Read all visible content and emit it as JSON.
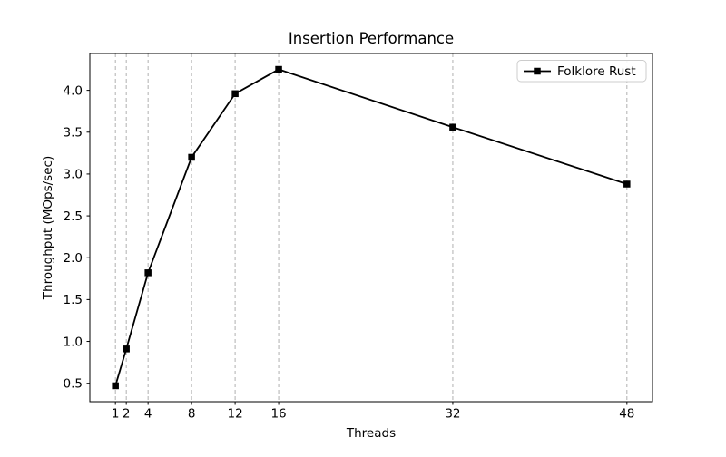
{
  "chart_data": {
    "type": "line",
    "title": "Insertion Performance",
    "xlabel": "Threads",
    "ylabel": "Throughput (MOps/sec)",
    "legend_position": "upper right",
    "grid": "vertical dashed gridlines at x ticks only",
    "xlim": [
      -1.35,
      50.35
    ],
    "ylim": [
      0.28,
      4.44
    ],
    "x_ticks": [
      1,
      2,
      4,
      8,
      12,
      16,
      32,
      48
    ],
    "y_ticks": [
      0.5,
      1.0,
      1.5,
      2.0,
      2.5,
      3.0,
      3.5,
      4.0
    ],
    "series": [
      {
        "name": "Folklore Rust",
        "color": "#000000",
        "marker": "square",
        "x": [
          1,
          2,
          4,
          8,
          12,
          16,
          32,
          48
        ],
        "y": [
          0.47,
          0.91,
          1.82,
          3.2,
          3.96,
          4.25,
          3.56,
          2.88
        ]
      }
    ]
  },
  "colors": {
    "background": "#ffffff",
    "line": "#000000",
    "grid": "#b0b0b0",
    "frame": "#000000",
    "legend_border": "#cccccc"
  }
}
